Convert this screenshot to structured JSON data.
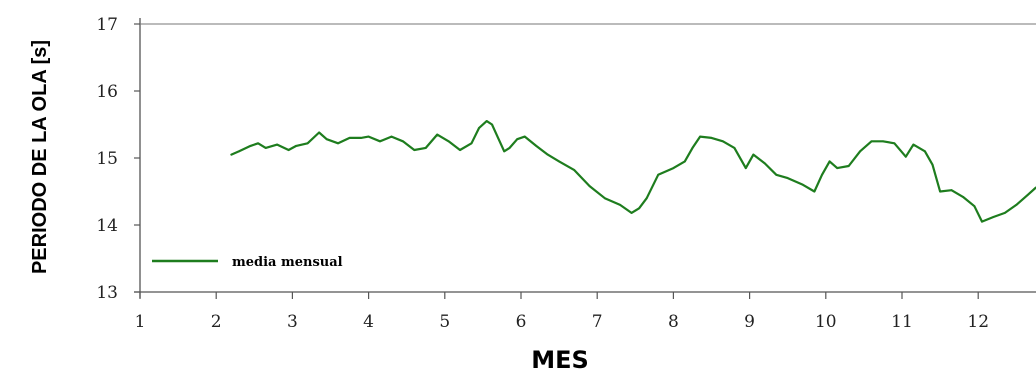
{
  "chart_data": {
    "type": "line",
    "xlabel": "MES",
    "ylabel": "PERIODO DE LA OLA [s]",
    "xlim": [
      1,
      13
    ],
    "ylim": [
      13,
      17
    ],
    "x_ticks": [
      "1",
      "2",
      "3",
      "4",
      "5",
      "6",
      "7",
      "8",
      "9",
      "10",
      "11",
      "12"
    ],
    "y_ticks": [
      "13",
      "14",
      "15",
      "16",
      "17"
    ],
    "grid": "horizontal line at top only",
    "legend_position": "bottom-left",
    "series": [
      {
        "name": "media mensual",
        "color": "#1e7d1e",
        "x": [
          2.2,
          2.3,
          2.45,
          2.55,
          2.65,
          2.8,
          2.95,
          3.05,
          3.2,
          3.35,
          3.45,
          3.6,
          3.75,
          3.9,
          4.0,
          4.15,
          4.3,
          4.45,
          4.6,
          4.75,
          4.9,
          5.05,
          5.2,
          5.35,
          5.45,
          5.55,
          5.62,
          5.7,
          5.78,
          5.85,
          5.95,
          6.05,
          6.2,
          6.35,
          6.5,
          6.7,
          6.9,
          7.1,
          7.3,
          7.45,
          7.55,
          7.65,
          7.8,
          8.0,
          8.15,
          8.25,
          8.35,
          8.5,
          8.65,
          8.8,
          8.95,
          9.05,
          9.2,
          9.35,
          9.5,
          9.7,
          9.85,
          9.95,
          10.05,
          10.15,
          10.3,
          10.45,
          10.6,
          10.75,
          10.9,
          11.05,
          11.15,
          11.3,
          11.4,
          11.5,
          11.65,
          11.8,
          11.95,
          12.05,
          12.2,
          12.35,
          12.5,
          12.65,
          12.75,
          12.9
        ],
        "values": [
          15.05,
          15.1,
          15.18,
          15.22,
          15.15,
          15.2,
          15.12,
          15.18,
          15.22,
          15.38,
          15.28,
          15.22,
          15.3,
          15.3,
          15.32,
          15.25,
          15.32,
          15.25,
          15.12,
          15.15,
          15.35,
          15.25,
          15.12,
          15.22,
          15.45,
          15.55,
          15.5,
          15.3,
          15.1,
          15.15,
          15.28,
          15.32,
          15.18,
          15.05,
          14.95,
          14.82,
          14.58,
          14.4,
          14.3,
          14.18,
          14.25,
          14.4,
          14.75,
          14.85,
          14.95,
          15.15,
          15.32,
          15.3,
          15.25,
          15.15,
          14.85,
          15.05,
          14.92,
          14.75,
          14.7,
          14.6,
          14.5,
          14.75,
          14.95,
          14.85,
          14.88,
          15.1,
          15.25,
          15.25,
          15.22,
          15.02,
          15.2,
          15.1,
          14.9,
          14.5,
          14.52,
          14.42,
          14.28,
          14.05,
          14.12,
          14.18,
          14.3,
          14.45,
          14.55,
          14.68
        ]
      }
    ]
  }
}
